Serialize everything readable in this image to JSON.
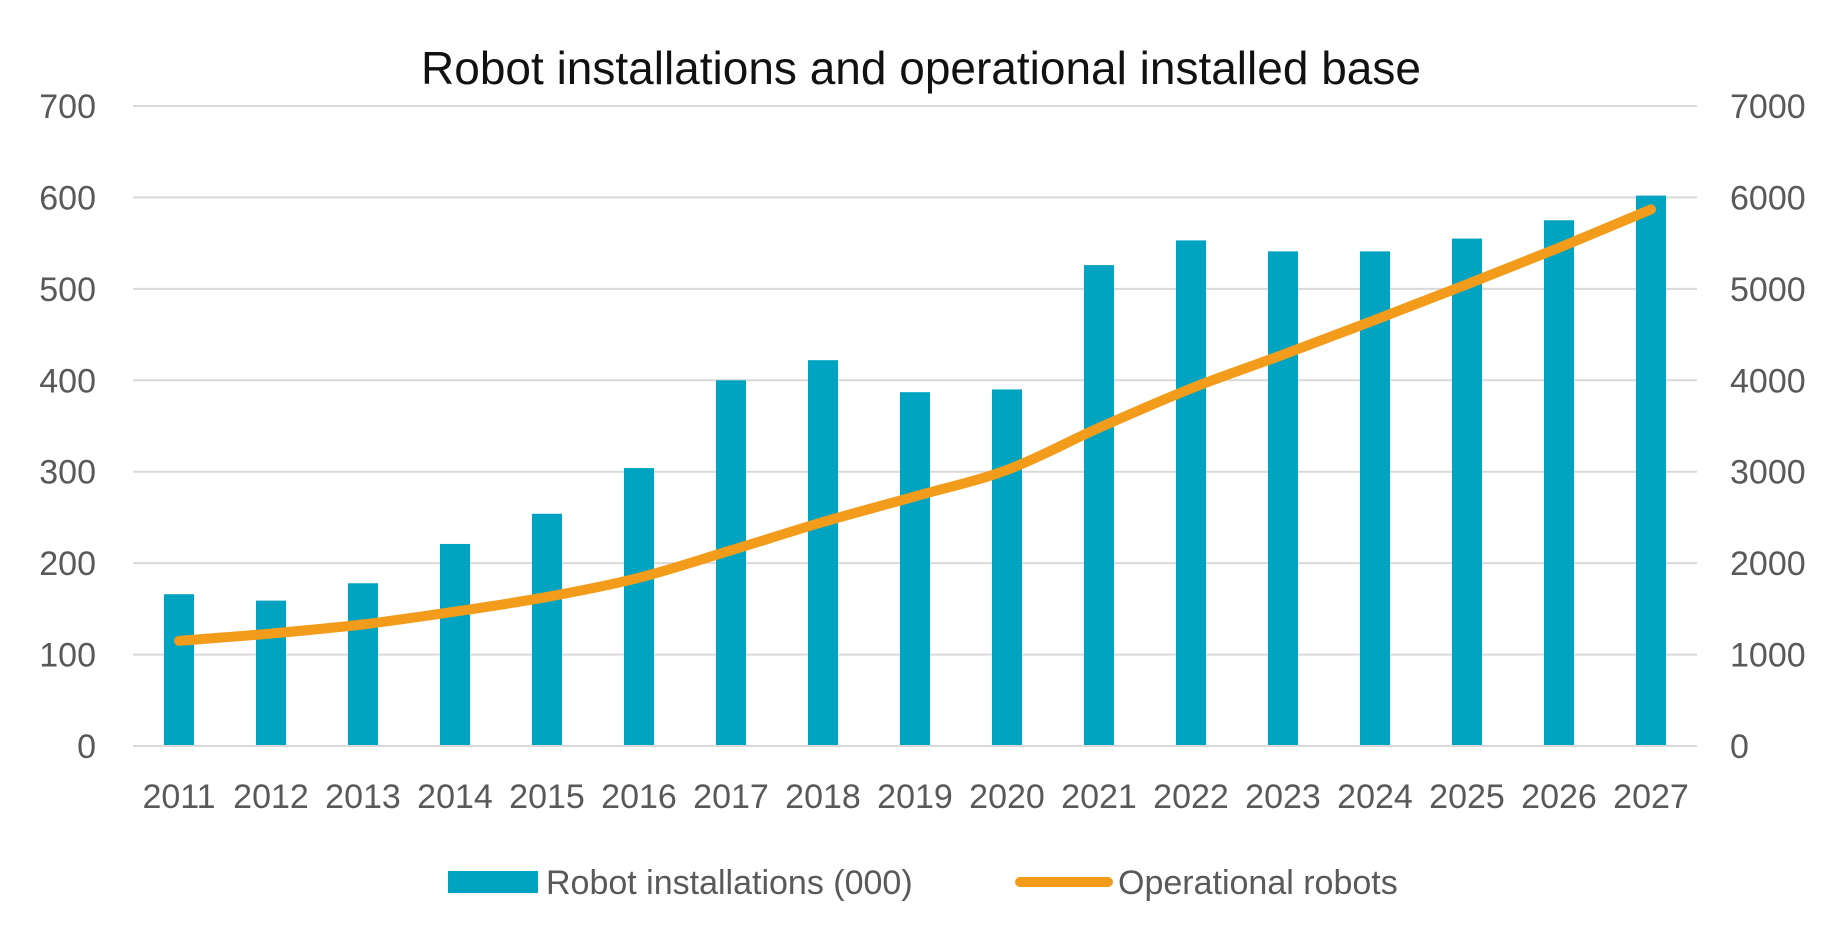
{
  "chart_data": {
    "type": "bar",
    "title": "Robot installations and operational installed base",
    "categories": [
      "2011",
      "2012",
      "2013",
      "2014",
      "2015",
      "2016",
      "2017",
      "2018",
      "2019",
      "2020",
      "2021",
      "2022",
      "2023",
      "2024",
      "2025",
      "2026",
      "2027"
    ],
    "series": [
      {
        "name": "Robot installations (000)",
        "type": "bar",
        "axis": "left",
        "color": "#00a3c0",
        "values": [
          166,
          159,
          178,
          221,
          254,
          304,
          400,
          422,
          387,
          390,
          526,
          553,
          541,
          541,
          555,
          575,
          602
        ]
      },
      {
        "name": "Operational robots",
        "type": "line",
        "axis": "right",
        "color": "#f39c1b",
        "values": [
          1150,
          1230,
          1330,
          1470,
          1630,
          1840,
          2140,
          2450,
          2730,
          3020,
          3480,
          3910,
          4280,
          4660,
          5050,
          5450,
          5870
        ]
      }
    ],
    "y_left": {
      "min": 0,
      "max": 700,
      "ticks": [
        0,
        100,
        200,
        300,
        400,
        500,
        600,
        700
      ]
    },
    "y_right": {
      "min": 0,
      "max": 7000,
      "ticks": [
        0,
        1000,
        2000,
        3000,
        4000,
        5000,
        6000,
        7000
      ]
    },
    "grid": true,
    "legend_position": "bottom"
  }
}
